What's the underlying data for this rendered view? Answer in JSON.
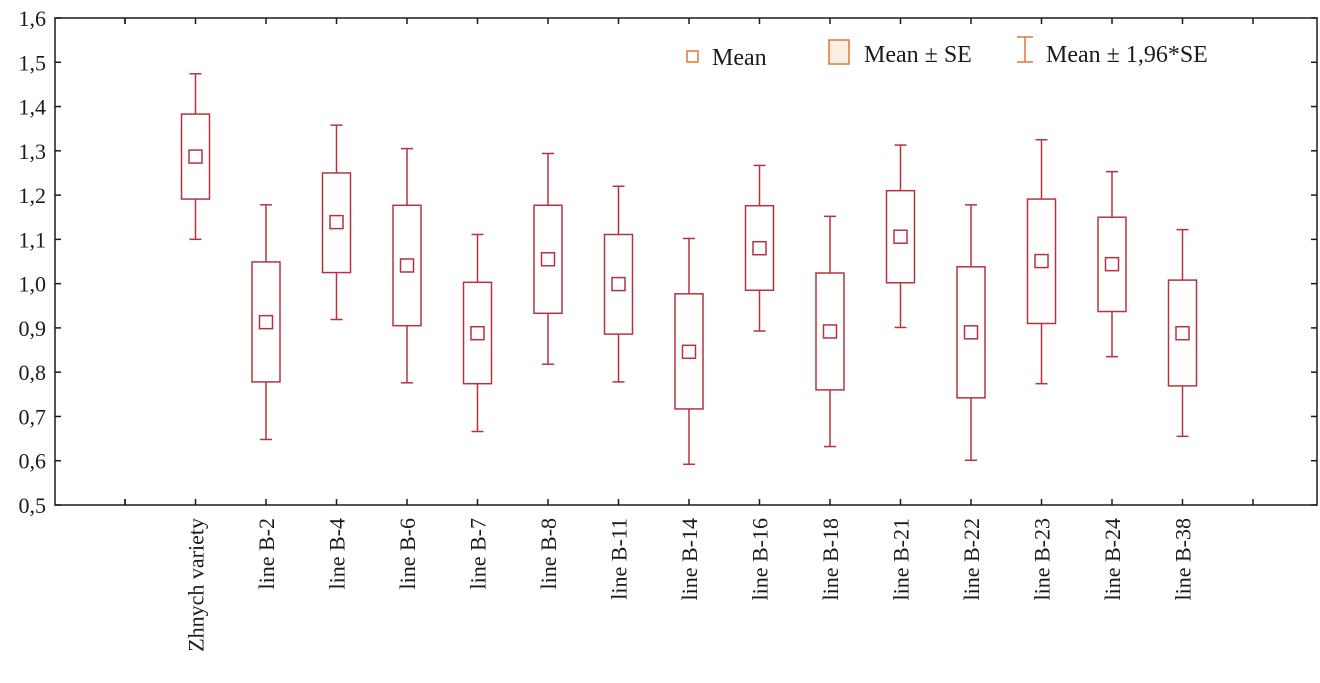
{
  "colors": {
    "box": "#b5333f",
    "legend_marker": "#e0773a",
    "legend_fill": "#fbeee4",
    "axis": "#1a1a1a"
  },
  "legend": {
    "mean_label": "Mean",
    "se_label": "Mean ± SE",
    "ci_label": "Mean ± 1,96*SE"
  },
  "chart_data": {
    "type": "box",
    "title": "",
    "xlabel": "",
    "ylabel": "",
    "ylim": [
      0.5,
      1.6
    ],
    "yticks": [
      0.5,
      0.6,
      0.7,
      0.8,
      0.9,
      1.0,
      1.1,
      1.2,
      1.3,
      1.4,
      1.5,
      1.6
    ],
    "ytick_labels": [
      "0,5",
      "0,6",
      "0,7",
      "0,8",
      "0,9",
      "1,0",
      "1,1",
      "1,2",
      "1,3",
      "1,4",
      "1,5",
      "1,6"
    ],
    "grid": false,
    "legend_position": "top-right",
    "categories": [
      "Zhnych variety",
      "line B-2",
      "line B-4",
      "line B-6",
      "line B-7",
      "line B-8",
      "line B-11",
      "line B-14",
      "line B-16",
      "line B-18",
      "line B-21",
      "line B-22",
      "line B-23",
      "line B-24",
      "line B-38"
    ],
    "mean": [
      1.287,
      0.913,
      1.139,
      1.041,
      0.888,
      1.055,
      0.999,
      0.846,
      1.08,
      0.892,
      1.106,
      0.89,
      1.051,
      1.044,
      0.888
    ],
    "se_low": [
      1.191,
      0.778,
      1.025,
      0.905,
      0.774,
      0.933,
      0.886,
      0.717,
      0.985,
      0.76,
      1.002,
      0.742,
      0.91,
      0.937,
      0.769
    ],
    "se_high": [
      1.383,
      1.049,
      1.25,
      1.177,
      1.003,
      1.177,
      1.111,
      0.977,
      1.176,
      1.024,
      1.21,
      1.038,
      1.191,
      1.15,
      1.008
    ],
    "ci_low": [
      1.1,
      0.648,
      0.919,
      0.776,
      0.666,
      0.818,
      0.778,
      0.592,
      0.893,
      0.632,
      0.901,
      0.601,
      0.774,
      0.835,
      0.655
    ],
    "ci_high": [
      1.474,
      1.178,
      1.358,
      1.305,
      1.111,
      1.294,
      1.22,
      1.102,
      1.267,
      1.152,
      1.313,
      1.178,
      1.325,
      1.253,
      1.122
    ]
  }
}
